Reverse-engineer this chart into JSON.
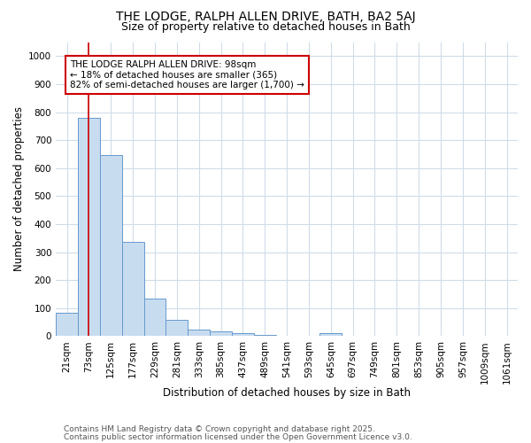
{
  "title1": "THE LODGE, RALPH ALLEN DRIVE, BATH, BA2 5AJ",
  "title2": "Size of property relative to detached houses in Bath",
  "xlabel": "Distribution of detached houses by size in Bath",
  "ylabel": "Number of detached properties",
  "categories": [
    "21sqm",
    "73sqm",
    "125sqm",
    "177sqm",
    "229sqm",
    "281sqm",
    "333sqm",
    "385sqm",
    "437sqm",
    "489sqm",
    "541sqm",
    "593sqm",
    "645sqm",
    "697sqm",
    "749sqm",
    "801sqm",
    "853sqm",
    "905sqm",
    "957sqm",
    "1009sqm",
    "1061sqm"
  ],
  "values": [
    83,
    780,
    645,
    335,
    133,
    57,
    23,
    18,
    10,
    5,
    0,
    0,
    10,
    0,
    0,
    0,
    0,
    0,
    0,
    0,
    0
  ],
  "bar_color": "#c8dcf0",
  "bar_edge_color": "#6699cc",
  "property_line_x": 1,
  "annotation_text": "THE LODGE RALPH ALLEN DRIVE: 98sqm\n← 18% of detached houses are smaller (365)\n82% of semi-detached houses are larger (1,700) →",
  "annotation_box_color": "#ffffff",
  "annotation_box_edge": "#cc0000",
  "line_color": "#cc0000",
  "ylim": [
    0,
    1050
  ],
  "yticks": [
    0,
    100,
    200,
    300,
    400,
    500,
    600,
    700,
    800,
    900,
    1000
  ],
  "footer1": "Contains HM Land Registry data © Crown copyright and database right 2025.",
  "footer2": "Contains public sector information licensed under the Open Government Licence v3.0.",
  "bg_color": "#ffffff",
  "grid_color": "#d0dce8",
  "title_fontsize": 10,
  "subtitle_fontsize": 9,
  "axis_label_fontsize": 8.5,
  "tick_fontsize": 7.5,
  "annotation_fontsize": 7.5,
  "footer_fontsize": 6.5
}
